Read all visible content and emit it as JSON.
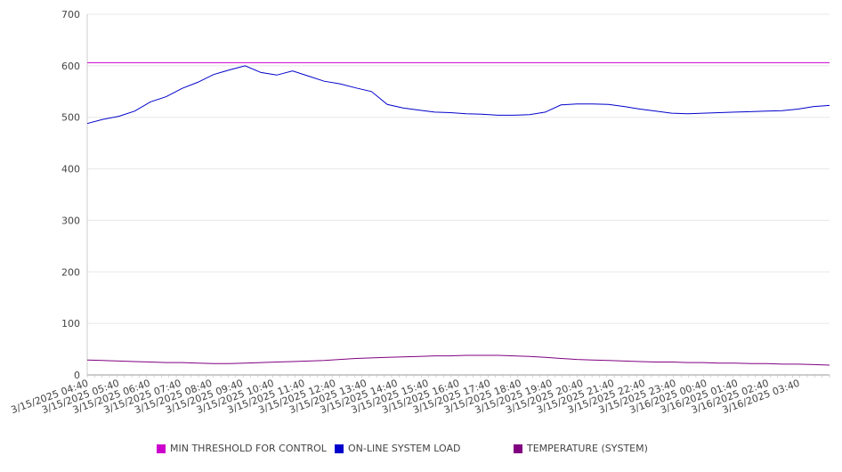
{
  "chart_data": {
    "type": "line",
    "title": "",
    "xlabel": "",
    "ylabel": "",
    "ylim": [
      0,
      700
    ],
    "yticks": [
      0,
      100,
      200,
      300,
      400,
      500,
      600,
      700
    ],
    "grid": true,
    "legend_position": "bottom",
    "x_tick_labels": [
      "3/15/2025 04:40",
      "3/15/2025 05:40",
      "3/15/2025 06:40",
      "3/15/2025 07:40",
      "3/15/2025 08:40",
      "3/15/2025 09:40",
      "3/15/2025 10:40",
      "3/15/2025 11:40",
      "3/15/2025 12:40",
      "3/15/2025 13:40",
      "3/15/2025 14:40",
      "3/15/2025 15:40",
      "3/15/2025 16:40",
      "3/15/2025 17:40",
      "3/15/2025 18:40",
      "3/15/2025 19:40",
      "3/15/2025 20:40",
      "3/15/2025 21:40",
      "3/15/2025 22:40",
      "3/15/2025 23:40",
      "3/16/2025 00:40",
      "3/16/2025 01:40",
      "3/16/2025 02:40",
      "3/16/2025 03:40"
    ],
    "x": [
      "3/15/2025 04:40",
      "3/15/2025 05:10",
      "3/15/2025 05:40",
      "3/15/2025 06:10",
      "3/15/2025 06:40",
      "3/15/2025 07:10",
      "3/15/2025 07:40",
      "3/15/2025 08:10",
      "3/15/2025 08:40",
      "3/15/2025 09:10",
      "3/15/2025 09:40",
      "3/15/2025 10:10",
      "3/15/2025 10:40",
      "3/15/2025 11:10",
      "3/15/2025 11:40",
      "3/15/2025 12:10",
      "3/15/2025 12:40",
      "3/15/2025 13:10",
      "3/15/2025 13:40",
      "3/15/2025 14:10",
      "3/15/2025 14:40",
      "3/15/2025 15:10",
      "3/15/2025 15:40",
      "3/15/2025 16:10",
      "3/15/2025 16:40",
      "3/15/2025 17:10",
      "3/15/2025 17:40",
      "3/15/2025 18:10",
      "3/15/2025 18:40",
      "3/15/2025 19:10",
      "3/15/2025 19:40",
      "3/15/2025 20:10",
      "3/15/2025 20:40",
      "3/15/2025 21:10",
      "3/15/2025 21:40",
      "3/15/2025 22:10",
      "3/15/2025 22:40",
      "3/15/2025 23:10",
      "3/15/2025 23:40",
      "3/16/2025 00:10",
      "3/16/2025 00:40",
      "3/16/2025 01:10",
      "3/16/2025 01:40",
      "3/16/2025 02:10",
      "3/16/2025 02:40",
      "3/16/2025 03:10",
      "3/16/2025 03:40",
      "3/16/2025 04:10"
    ],
    "series": [
      {
        "name": "MIN THRESHOLD FOR CONTROL",
        "color": "#cc00cc",
        "values": [
          606,
          606,
          606,
          606,
          606,
          606,
          606,
          606,
          606,
          606,
          606,
          606,
          606,
          606,
          606,
          606,
          606,
          606,
          606,
          606,
          606,
          606,
          606,
          606,
          606,
          606,
          606,
          606,
          606,
          606,
          606,
          606,
          606,
          606,
          606,
          606,
          606,
          606,
          606,
          606,
          606,
          606,
          606,
          606,
          606,
          606,
          606,
          606
        ]
      },
      {
        "name": "ON-LINE SYSTEM LOAD",
        "color": "#0000cc",
        "values": [
          488,
          496,
          502,
          512,
          530,
          540,
          556,
          568,
          583,
          592,
          600,
          587,
          582,
          590,
          580,
          570,
          565,
          557,
          550,
          525,
          518,
          514,
          510,
          509,
          507,
          506,
          504,
          504,
          505,
          510,
          524,
          526,
          526,
          525,
          521,
          516,
          512,
          508,
          507,
          508,
          509,
          510,
          511,
          512,
          513,
          516,
          521,
          523
        ]
      },
      {
        "name": "TEMPERATURE (SYSTEM)",
        "color": "#800080",
        "values": [
          29,
          28,
          27,
          26,
          25,
          24,
          24,
          23,
          22,
          22,
          23,
          24,
          25,
          26,
          27,
          28,
          30,
          32,
          33,
          34,
          35,
          36,
          37,
          37,
          38,
          38,
          38,
          37,
          36,
          34,
          32,
          30,
          29,
          28,
          27,
          26,
          25,
          25,
          24,
          24,
          23,
          23,
          22,
          22,
          21,
          21,
          20,
          19
        ]
      }
    ]
  }
}
